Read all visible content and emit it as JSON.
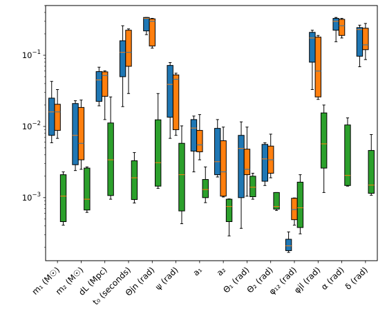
{
  "chart_data": {
    "type": "box",
    "yscale": "log",
    "ylim": [
      0.00013,
      0.5
    ],
    "y_ticks": [
      {
        "value": 0.001,
        "base": "10",
        "exp": "−3"
      },
      {
        "value": 0.01,
        "base": "10",
        "exp": "−2"
      },
      {
        "value": 0.1,
        "base": "10",
        "exp": "−1"
      }
    ],
    "categories": [
      "m₁ (M☉)",
      "m₂ (M☉)",
      "dL (Mpc)",
      "t₀ (seconds)",
      "Θjn (rad)",
      "ψ (rad)",
      "a₁",
      "a₂",
      "Θ₁ (rad)",
      "Θ₂ (rad)",
      "φ₁₂ (rad)",
      "φjl (rad)",
      "α (rad)",
      "δ (rad)"
    ],
    "series": [
      {
        "color": "#1f77b4",
        "median_color": "#ff7f0e",
        "boxes": [
          {
            "whislo": 0.0059,
            "q1": 0.0075,
            "med": 0.016,
            "q3": 0.025,
            "whishi": 0.043
          },
          {
            "whislo": 0.0024,
            "q1": 0.0029,
            "med": 0.0075,
            "q3": 0.021,
            "whishi": 0.023
          },
          {
            "whislo": 0.0195,
            "q1": 0.0225,
            "med": 0.045,
            "q3": 0.059,
            "whishi": 0.068
          },
          {
            "whislo": 0.019,
            "q1": 0.05,
            "med": 0.11,
            "q3": 0.16,
            "whishi": 0.26
          },
          {
            "whislo": 0.195,
            "q1": 0.22,
            "med": 0.33,
            "q3": 0.34,
            "whishi": 0.34
          },
          {
            "whislo": 0.0068,
            "q1": 0.0135,
            "med": 0.039,
            "q3": 0.072,
            "whishi": 0.079
          },
          {
            "whislo": 0.0023,
            "q1": 0.0045,
            "med": 0.0095,
            "q3": 0.0125,
            "whishi": 0.014
          },
          {
            "whislo": 0.00195,
            "q1": 0.0021,
            "med": 0.0032,
            "q3": 0.0094,
            "whishi": 0.0125
          },
          {
            "whislo": 0.00037,
            "q1": 0.001,
            "med": 0.0049,
            "q3": 0.0075,
            "whishi": 0.0116
          },
          {
            "whislo": 0.00148,
            "q1": 0.0017,
            "med": 0.0035,
            "q3": 0.0056,
            "whishi": 0.0059
          },
          {
            "whislo": 0.00017,
            "q1": 0.00018,
            "med": 0.00021,
            "q3": 0.00026,
            "whishi": 0.00033
          },
          {
            "whislo": 0.033,
            "q1": 0.08,
            "med": 0.175,
            "q3": 0.21,
            "whishi": 0.225
          },
          {
            "whislo": 0.155,
            "q1": 0.225,
            "med": 0.3,
            "q3": 0.33,
            "whishi": 0.34
          },
          {
            "whislo": 0.069,
            "q1": 0.097,
            "med": 0.23,
            "q3": 0.245,
            "whishi": 0.265
          }
        ]
      },
      {
        "color": "#ff7f0e",
        "median_color": "#1f77b4",
        "boxes": [
          {
            "whislo": 0.0068,
            "q1": 0.0088,
            "med": 0.016,
            "q3": 0.0205,
            "whishi": 0.033
          },
          {
            "whislo": 0.0025,
            "q1": 0.0034,
            "med": 0.0058,
            "q3": 0.0185,
            "whishi": 0.0235
          },
          {
            "whislo": 0.0125,
            "q1": 0.0265,
            "med": 0.052,
            "q3": 0.0585,
            "whishi": 0.0605
          },
          {
            "whislo": 0.029,
            "q1": 0.07,
            "med": 0.11,
            "q3": 0.225,
            "whishi": 0.235
          },
          {
            "whislo": 0.126,
            "q1": 0.135,
            "med": 0.3,
            "q3": 0.325,
            "whishi": 0.33
          },
          {
            "whislo": 0.0075,
            "q1": 0.009,
            "med": 0.046,
            "q3": 0.053,
            "whishi": 0.056
          },
          {
            "whislo": 0.0034,
            "q1": 0.0044,
            "med": 0.0055,
            "q3": 0.0088,
            "whishi": 0.0147
          },
          {
            "whislo": 0.00102,
            "q1": 0.00105,
            "med": 0.0023,
            "q3": 0.0063,
            "whishi": 0.0098
          },
          {
            "whislo": 0.00105,
            "q1": 0.0021,
            "med": 0.0025,
            "q3": 0.0048,
            "whishi": 0.0098
          },
          {
            "whislo": 0.0019,
            "q1": 0.0022,
            "med": 0.0034,
            "q3": 0.0053,
            "whishi": 0.0078
          },
          {
            "whislo": 0.00041,
            "q1": 0.00049,
            "med": 0.00068,
            "q3": 0.00098,
            "whishi": 0.00099
          },
          {
            "whislo": 0.024,
            "q1": 0.026,
            "med": 0.06,
            "q3": 0.18,
            "whishi": 0.19
          },
          {
            "whislo": 0.175,
            "q1": 0.19,
            "med": 0.26,
            "q3": 0.32,
            "whishi": 0.33
          },
          {
            "whislo": 0.087,
            "q1": 0.12,
            "med": 0.14,
            "q3": 0.24,
            "whishi": 0.28
          }
        ]
      },
      {
        "color": "#2ca02c",
        "median_color": "#ff7f0e",
        "boxes": [
          {
            "whislo": 0.00041,
            "q1": 0.00046,
            "med": 0.00105,
            "q3": 0.0021,
            "whishi": 0.0023
          },
          {
            "whislo": 0.00062,
            "q1": 0.00067,
            "med": 0.00095,
            "q3": 0.0026,
            "whishi": 0.0027
          },
          {
            "whislo": 0.00095,
            "q1": 0.00107,
            "med": 0.0034,
            "q3": 0.0112,
            "whishi": 0.026
          },
          {
            "whislo": 0.00084,
            "q1": 0.00094,
            "med": 0.0019,
            "q3": 0.0033,
            "whishi": 0.0043
          },
          {
            "whislo": 0.00135,
            "q1": 0.00145,
            "med": 0.0031,
            "q3": 0.0124,
            "whishi": 0.029
          },
          {
            "whislo": 0.00043,
            "q1": 0.00065,
            "med": 0.0021,
            "q3": 0.0058,
            "whishi": 0.0102
          },
          {
            "whislo": 0.00085,
            "q1": 0.001,
            "med": 0.0013,
            "q3": 0.0018,
            "whishi": 0.0027
          },
          {
            "whislo": 0.00029,
            "q1": 0.00046,
            "med": 0.00075,
            "q3": 0.00095,
            "whishi": 0.00096
          },
          {
            "whislo": 0.00095,
            "q1": 0.00103,
            "med": 0.0014,
            "q3": 0.002,
            "whishi": 0.0022
          },
          {
            "whislo": 0.00066,
            "q1": 0.00069,
            "med": 0.00075,
            "q3": 0.00118,
            "whishi": 0.00118
          },
          {
            "whislo": 0.00031,
            "q1": 0.00038,
            "med": 0.00072,
            "q3": 0.00165,
            "whishi": 0.0021
          },
          {
            "whislo": 0.00118,
            "q1": 0.0026,
            "med": 0.0057,
            "q3": 0.0155,
            "whishi": 0.02
          },
          {
            "whislo": 0.00145,
            "q1": 0.00148,
            "med": 0.00205,
            "q3": 0.0105,
            "whishi": 0.0132
          },
          {
            "whislo": 0.00108,
            "q1": 0.00115,
            "med": 0.0015,
            "q3": 0.0046,
            "whishi": 0.0077
          }
        ]
      }
    ],
    "grid": false,
    "legend": "none"
  }
}
